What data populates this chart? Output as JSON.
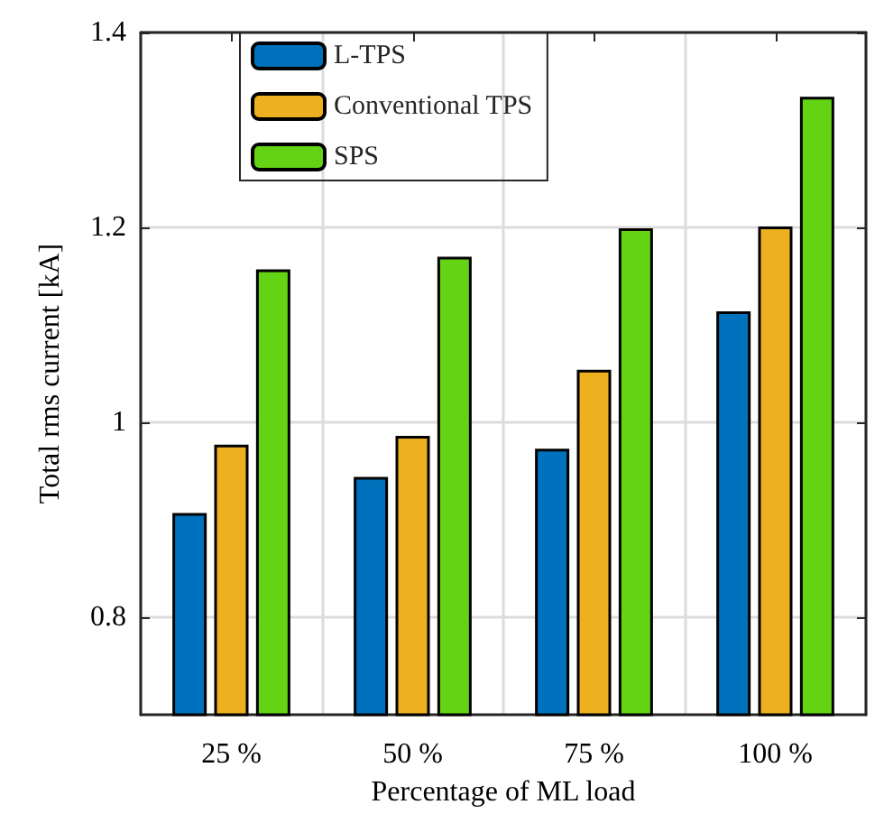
{
  "chart_data": {
    "type": "bar",
    "xlabel": "Percentage of ML load",
    "ylabel": "Total rms current [kA]",
    "categories": [
      "25 %",
      "50 %",
      "75 %",
      "100 %"
    ],
    "series": [
      {
        "name": "L-TPS",
        "color": "#0072bd",
        "values": [
          0.907,
          0.944,
          0.973,
          1.114
        ]
      },
      {
        "name": "Conventional TPS",
        "color": "#edb120",
        "values": [
          0.977,
          0.986,
          1.054,
          1.201
        ]
      },
      {
        "name": "SPS",
        "color": "#63d314",
        "values": [
          1.157,
          1.17,
          1.199,
          1.334
        ]
      }
    ],
    "ylim": [
      0.7,
      1.4
    ],
    "yticks": [
      0.8,
      1,
      1.2,
      1.4
    ],
    "grid": true,
    "legend": "top left"
  }
}
